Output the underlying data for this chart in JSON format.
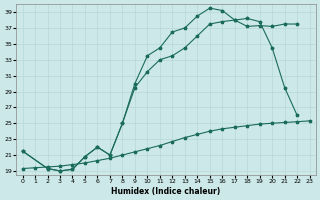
{
  "xlabel": "Humidex (Indice chaleur)",
  "bg_color": "#cce8e8",
  "grid_color": "#aacccc",
  "line_color": "#1a6b5a",
  "xlim": [
    -0.5,
    23.5
  ],
  "ylim": [
    18.5,
    40
  ],
  "xticks": [
    0,
    1,
    2,
    3,
    4,
    5,
    6,
    7,
    8,
    9,
    10,
    11,
    12,
    13,
    14,
    15,
    16,
    17,
    18,
    19,
    20,
    21,
    22,
    23
  ],
  "yticks": [
    19,
    21,
    23,
    25,
    27,
    29,
    31,
    33,
    35,
    37,
    39
  ],
  "series": [
    {
      "x": [
        0,
        1,
        2,
        3,
        4,
        5,
        6,
        7,
        8,
        9,
        10,
        11,
        12,
        13,
        14,
        15,
        16,
        17,
        18,
        19,
        20,
        21,
        22,
        23
      ],
      "y": [
        19.3,
        19.4,
        19.5,
        19.6,
        19.8,
        20.0,
        20.3,
        20.6,
        21.0,
        21.4,
        21.8,
        22.2,
        22.7,
        23.2,
        23.6,
        24.0,
        24.3,
        24.5,
        24.7,
        24.9,
        25.0,
        25.1,
        25.2,
        25.3
      ]
    },
    {
      "x": [
        0,
        2,
        3,
        4,
        5,
        6,
        7,
        8,
        9,
        10,
        11,
        12,
        13,
        14,
        15,
        16,
        17,
        18,
        19,
        20,
        21,
        22
      ],
      "y": [
        21.5,
        19.3,
        19.0,
        19.2,
        20.8,
        22.0,
        21.0,
        25.0,
        29.5,
        31.5,
        33.0,
        33.5,
        34.5,
        36.0,
        37.5,
        37.8,
        38.0,
        38.2,
        37.8,
        34.5,
        29.5,
        26.0
      ]
    },
    {
      "x": [
        0,
        2,
        3,
        4,
        5,
        6,
        7,
        8,
        9,
        10,
        11,
        12,
        13,
        14,
        15,
        16,
        17,
        18,
        19,
        20,
        21,
        22
      ],
      "y": [
        21.5,
        19.3,
        19.0,
        19.2,
        20.8,
        22.0,
        21.0,
        25.0,
        30.0,
        33.5,
        34.5,
        36.5,
        37.0,
        38.5,
        39.5,
        39.2,
        38.0,
        37.2,
        37.3,
        37.2,
        37.5,
        37.5
      ]
    }
  ]
}
